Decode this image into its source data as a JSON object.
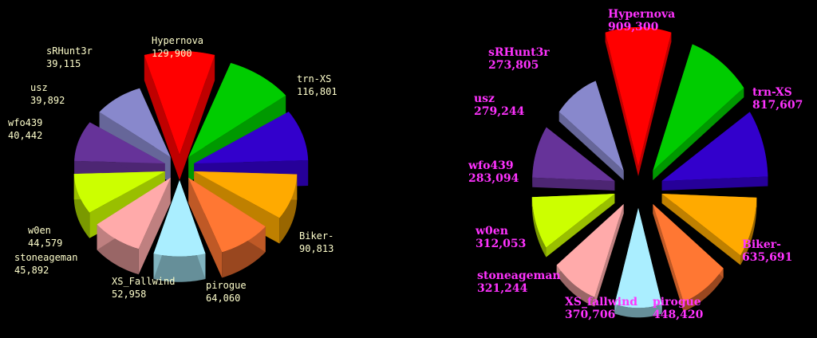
{
  "chart_data": [
    {
      "type": "pie",
      "style": "3d-exploded",
      "categories": [
        "Hypernova",
        "trn-XS",
        "Biker-",
        "pirogue",
        "XS_Fallwind",
        "stoneageman",
        "w0en",
        "wfo439",
        "usz",
        "sRHunt3r"
      ],
      "values": [
        129900,
        116801,
        90813,
        64060,
        52958,
        45892,
        44579,
        40442,
        39892,
        39115
      ],
      "value_labels": [
        "129,900",
        "116,801",
        "90,813",
        "64,060",
        "52,958",
        "45,892",
        "44,579",
        "40,442",
        "39,892",
        "39,115"
      ],
      "label_color": "#ffffcc"
    },
    {
      "type": "pie",
      "style": "3d-exploded",
      "categories": [
        "Hypernova",
        "trn-XS",
        "Biker-",
        "pirogue",
        "XS_fallwind",
        "stoneageman",
        "w0en",
        "wfo439",
        "usz",
        "sRHunt3r"
      ],
      "values": [
        909300,
        817607,
        635691,
        448420,
        370706,
        321244,
        312053,
        283094,
        279244,
        273805
      ],
      "value_labels": [
        "909,300",
        "817,607",
        "635,691",
        "448,420",
        "370,706",
        "321,244",
        "312,053",
        "283,094",
        "279,244",
        "273,805"
      ],
      "label_color": "#ff33ff"
    }
  ],
  "colors": [
    "#ff0000",
    "#00cc00",
    "#3300cc",
    "#ffaa00",
    "#ff7733",
    "#aaeeff",
    "#ffaaaa",
    "#ccff00",
    "#663399",
    "#8888cc"
  ]
}
